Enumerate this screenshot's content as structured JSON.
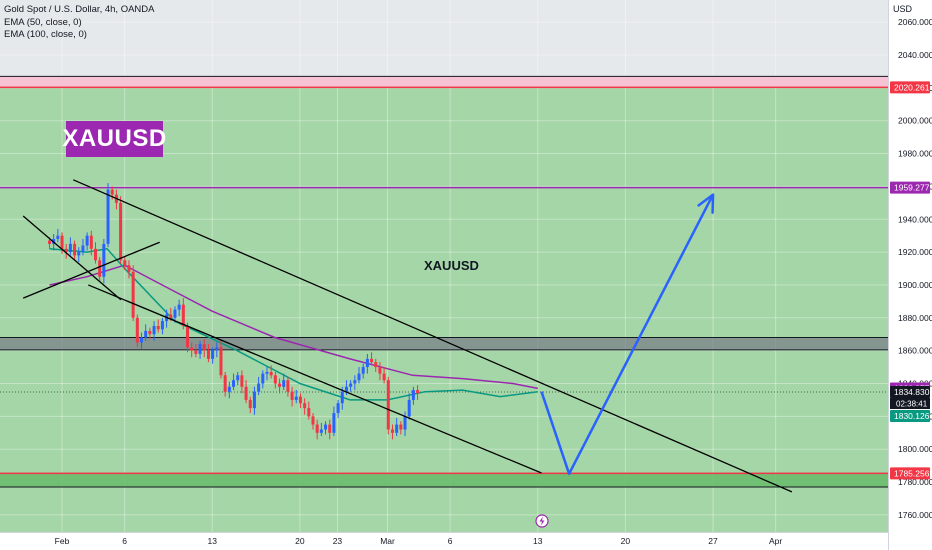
{
  "legend": {
    "symbol_line": "Gold Spot / U.S. Dollar, 4h, OANDA",
    "ema50": "EMA (50, close, 0)",
    "ema100": "EMA (100, close, 0)"
  },
  "badge_text": "XAUUSD",
  "chart_text": "XAUUSD",
  "currency": "USD",
  "colors": {
    "background_green": "#a5d6a7",
    "zone_red": "#f8bbd0",
    "zone_dark": "#787b86",
    "level_purple": "#9c27b0",
    "level_red": "#f23645",
    "candle_up": "#2962ff",
    "candle_down": "#f23645",
    "ema50": "#089981",
    "ema100": "#9c27b0",
    "projection": "#2962ff",
    "trendline": "#000000"
  },
  "chart_data": {
    "type": "candlestick",
    "symbol": "XAUUSD",
    "timeframe": "4h",
    "ylim": [
      1750,
      2070
    ],
    "y_ticks": [
      1760,
      1780,
      1800,
      1820,
      1840,
      1860,
      1880,
      1900,
      1920,
      1940,
      1960,
      1980,
      2000,
      2020,
      2040,
      2060
    ],
    "y_tick_labels": [
      "1760.000",
      "1780.000",
      "1800.000",
      "1820.000",
      "1840.000",
      "1860.000",
      "1880.000",
      "1900.000",
      "1920.000",
      "1940.000",
      "1960.000",
      "1980.000",
      "2000.000",
      "2020.000",
      "2040.000",
      "2060.000"
    ],
    "x_ticks": [
      {
        "label": "Feb",
        "x": 0
      },
      {
        "label": "6",
        "x": 5
      },
      {
        "label": "13",
        "x": 12
      },
      {
        "label": "20",
        "x": 19
      },
      {
        "label": "23",
        "x": 22
      },
      {
        "label": "Mar",
        "x": 26
      },
      {
        "label": "6",
        "x": 31
      },
      {
        "label": "13",
        "x": 38
      },
      {
        "label": "20",
        "x": 45
      },
      {
        "label": "27",
        "x": 52
      },
      {
        "label": "Apr",
        "x": 57
      }
    ],
    "candles_close": [
      1925,
      1928,
      1930,
      1922,
      1920,
      1925,
      1918,
      1920,
      1924,
      1930,
      1922,
      1915,
      1905,
      1925,
      1958,
      1955,
      1950,
      1915,
      1912,
      1908,
      1880,
      1865,
      1868,
      1872,
      1870,
      1875,
      1873,
      1878,
      1882,
      1880,
      1885,
      1888,
      1875,
      1862,
      1860,
      1858,
      1864,
      1860,
      1855,
      1860,
      1862,
      1845,
      1835,
      1838,
      1842,
      1845,
      1838,
      1830,
      1825,
      1835,
      1840,
      1846,
      1847,
      1845,
      1840,
      1838,
      1842,
      1835,
      1830,
      1832,
      1828,
      1825,
      1820,
      1815,
      1810,
      1812,
      1815,
      1810,
      1822,
      1828,
      1835,
      1838,
      1840,
      1842,
      1846,
      1850,
      1855,
      1853,
      1850,
      1846,
      1842,
      1812,
      1810,
      1815,
      1812,
      1820,
      1830,
      1836,
      1834
    ],
    "candles_x_range": [
      -1,
      28.4
    ],
    "ema50": [
      {
        "x": -1,
        "y": 1922
      },
      {
        "x": 2,
        "y": 1920
      },
      {
        "x": 3.6,
        "y": 1922
      },
      {
        "x": 5,
        "y": 1910
      },
      {
        "x": 9,
        "y": 1878
      },
      {
        "x": 14,
        "y": 1860
      },
      {
        "x": 19,
        "y": 1840
      },
      {
        "x": 23,
        "y": 1830
      },
      {
        "x": 26,
        "y": 1830
      },
      {
        "x": 29,
        "y": 1835
      },
      {
        "x": 32,
        "y": 1836
      },
      {
        "x": 35,
        "y": 1832
      },
      {
        "x": 38,
        "y": 1835
      }
    ],
    "ema100": [
      {
        "x": -1,
        "y": 1900
      },
      {
        "x": 2,
        "y": 1905
      },
      {
        "x": 5,
        "y": 1912
      },
      {
        "x": 8,
        "y": 1900
      },
      {
        "x": 12,
        "y": 1884
      },
      {
        "x": 17,
        "y": 1868
      },
      {
        "x": 23,
        "y": 1855
      },
      {
        "x": 28,
        "y": 1845
      },
      {
        "x": 32,
        "y": 1843
      },
      {
        "x": 36,
        "y": 1840
      },
      {
        "x": 38,
        "y": 1837
      }
    ],
    "levels": [
      {
        "price": 2020.261,
        "label": "2020.261",
        "color": "#f23645"
      },
      {
        "price": 1959.277,
        "label": "1959.277",
        "color": "#9c27b0"
      },
      {
        "price": 1785.256,
        "label": "1785.256",
        "color": "#f23645"
      }
    ],
    "zones": [
      {
        "from": 2020.261,
        "to": 2027,
        "color": "#f8bbd0"
      },
      {
        "from": 1860.5,
        "to": 1868,
        "color": "#787b86"
      },
      {
        "from": 1777,
        "to": 1785.256,
        "color": "#66bb6a"
      }
    ],
    "price_labels": [
      {
        "price": 1836.977,
        "label": "1836.977",
        "color": "#9c27b0"
      },
      {
        "price": 1834.83,
        "label": "1834.830",
        "color": "#131722"
      },
      {
        "price": 1830.126,
        "label": "1830.126",
        "color": "#089981"
      }
    ],
    "countdown": "02:38:41",
    "trendlines": [
      {
        "x1": 0.9,
        "y1": 1964,
        "x2": 58.3,
        "y2": 1774
      },
      {
        "x1": 2.1,
        "y1": 1900,
        "x2": 38.3,
        "y2": 1785.5
      },
      {
        "x1": -3.1,
        "y1": 1942,
        "x2": 4.7,
        "y2": 1891
      },
      {
        "x1": -3.1,
        "y1": 1892,
        "x2": 7.8,
        "y2": 1926
      }
    ],
    "projection": [
      {
        "x": 38.3,
        "y": 1835
      },
      {
        "x": 40.5,
        "y": 1785
      },
      {
        "x": 52,
        "y": 1955
      }
    ]
  }
}
